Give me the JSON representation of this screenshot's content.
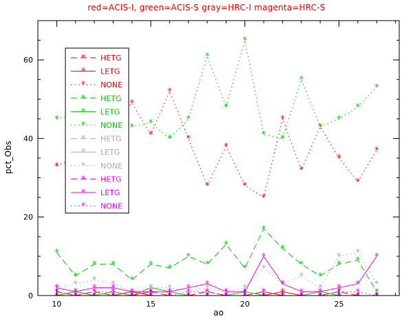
{
  "chart_data": {
    "type": "line",
    "title": "red=ACIS-I, green=ACIS-S gray=HRC-I magenta=HRC-S",
    "title_color": "#ff0000",
    "xlabel": "ao",
    "ylabel": "pct_Obs",
    "xlim": [
      9,
      28.2
    ],
    "ylim": [
      0,
      70
    ],
    "xticks": [
      10,
      15,
      20,
      25
    ],
    "yticks": [
      0,
      20,
      40,
      60
    ],
    "x_minor_step": 1,
    "y_minor_step": 5,
    "grid": false,
    "marker": "*",
    "legend": {
      "position": "upper-left"
    },
    "x": [
      10,
      11,
      12,
      13,
      14,
      15,
      16,
      17,
      18,
      19,
      20,
      21,
      22,
      23,
      24,
      25,
      26,
      27
    ],
    "series": [
      {
        "name": "HETG",
        "group": "ACIS-I",
        "color": "#ff0000",
        "style": "dashed",
        "values": [
          1,
          0,
          1,
          0,
          0,
          1,
          0,
          0,
          1,
          0,
          0,
          1,
          0,
          0,
          0,
          1,
          0,
          0
        ]
      },
      {
        "name": "LETG",
        "group": "ACIS-I",
        "color": "#ff0000",
        "style": "solid",
        "values": [
          0,
          1,
          0,
          0,
          1,
          0,
          0,
          0,
          0,
          0,
          0,
          0,
          1,
          0,
          0,
          0,
          0,
          0
        ]
      },
      {
        "name": "NONE",
        "group": "ACIS-I",
        "color": "#ff0000",
        "style": "dotted",
        "values": [
          33,
          35,
          40,
          45,
          49,
          41,
          52,
          40,
          28,
          38,
          28,
          25,
          45,
          32,
          43,
          35,
          29,
          37
        ]
      },
      {
        "name": "HETG",
        "group": "ACIS-S",
        "color": "#00cc00",
        "style": "dashed",
        "values": [
          11,
          5,
          8,
          8,
          4,
          8,
          7,
          10,
          8,
          13,
          7,
          17,
          12,
          8,
          5,
          8,
          9,
          1
        ]
      },
      {
        "name": "LETG",
        "group": "ACIS-S",
        "color": "#00cc00",
        "style": "solid",
        "values": [
          0,
          1,
          0,
          1,
          0,
          2,
          1,
          0,
          0,
          0,
          1,
          0,
          0,
          0,
          1,
          0,
          0,
          0
        ]
      },
      {
        "name": "NONE",
        "group": "ACIS-S",
        "color": "#00cc00",
        "style": "dotted",
        "values": [
          45,
          46,
          44,
          43,
          43,
          44,
          40,
          45,
          61,
          48,
          65,
          41,
          40,
          55,
          43,
          45,
          48,
          53
        ]
      },
      {
        "name": "HETG",
        "group": "HRC-I",
        "color": "#aaaaaa",
        "style": "dashed",
        "values": [
          0,
          0,
          0,
          0,
          0,
          0,
          0,
          0,
          0,
          0,
          0,
          0,
          0,
          0,
          0,
          0,
          0,
          0
        ]
      },
      {
        "name": "LETG",
        "group": "HRC-I",
        "color": "#aaaaaa",
        "style": "solid",
        "values": [
          0,
          0,
          0,
          0,
          0,
          0,
          0,
          0,
          0,
          0,
          0,
          0,
          0,
          0,
          0,
          0,
          0,
          0
        ]
      },
      {
        "name": "NONE",
        "group": "HRC-I",
        "color": "#aaaaaa",
        "style": "dotted",
        "values": [
          2,
          3,
          4,
          3,
          1,
          2,
          2,
          1,
          2,
          1,
          2,
          7,
          3,
          5,
          2,
          10,
          11,
          3
        ]
      },
      {
        "name": "HETG",
        "group": "HRC-S",
        "color": "#ff00ff",
        "style": "dashed",
        "values": [
          0,
          0,
          0,
          0,
          0,
          0,
          0,
          0,
          0,
          0,
          0,
          0,
          0,
          0,
          0,
          0,
          0,
          0
        ]
      },
      {
        "name": "LETG",
        "group": "HRC-S",
        "color": "#ff00ff",
        "style": "solid",
        "values": [
          2,
          1,
          2,
          2,
          1,
          1,
          1,
          2,
          3,
          1,
          1,
          10,
          3,
          1,
          1,
          2,
          3,
          10
        ]
      },
      {
        "name": "NONE",
        "group": "HRC-S",
        "color": "#ff00ff",
        "style": "dotted",
        "values": [
          1,
          0,
          1,
          1,
          0,
          0,
          0,
          1,
          1,
          0,
          0,
          1,
          0,
          0,
          0,
          1,
          1,
          0
        ]
      }
    ]
  }
}
